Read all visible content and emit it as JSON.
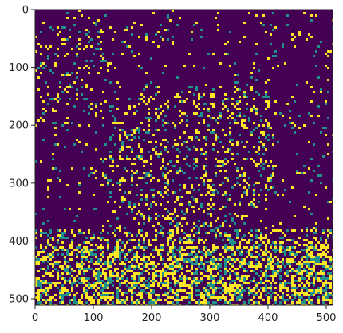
{
  "chart_data": {
    "type": "heatmap",
    "title": "",
    "xlabel": "",
    "ylabel": "",
    "x_range": [
      0,
      511
    ],
    "y_range": [
      511,
      0
    ],
    "x_ticks": [
      0,
      100,
      200,
      300,
      400,
      500
    ],
    "y_ticks": [
      0,
      100,
      200,
      300,
      400,
      500
    ],
    "x_tick_labels": [
      "0",
      "100",
      "200",
      "300",
      "400",
      "500"
    ],
    "y_tick_labels": [
      "0",
      "100",
      "200",
      "300",
      "400",
      "500"
    ],
    "grid": false,
    "legend": "none",
    "values_description": "binary image (0 = background, 1 = edge)",
    "colormap": "viridis",
    "colors": {
      "low": "#440154",
      "mid": "#21918c",
      "high": "#fde725",
      "axis": "#222222",
      "background": "#ffffff"
    }
  }
}
